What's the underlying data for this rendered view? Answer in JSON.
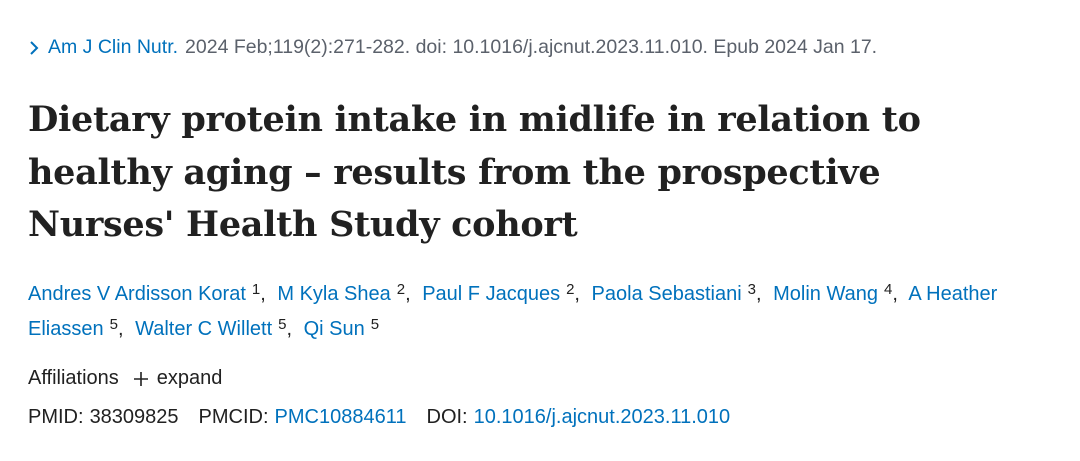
{
  "citation": {
    "journal": "Am J Clin Nutr.",
    "details": "2024 Feb;119(2):271-282. doi: 10.1016/j.ajcnut.2023.11.010. Epub 2024 Jan 17."
  },
  "title": "Dietary protein intake in midlife in relation to healthy aging – results from the prospective Nurses' Health Study cohort",
  "author_separator": ",",
  "authors": [
    {
      "name": "Andres V Ardisson Korat",
      "affiliation": "1"
    },
    {
      "name": "M Kyla Shea",
      "affiliation": "2"
    },
    {
      "name": "Paul F Jacques",
      "affiliation": "2"
    },
    {
      "name": "Paola Sebastiani",
      "affiliation": "3"
    },
    {
      "name": "Molin Wang",
      "affiliation": "4"
    },
    {
      "name": "A Heather Eliassen",
      "affiliation": "5"
    },
    {
      "name": "Walter C Willett",
      "affiliation": "5"
    },
    {
      "name": "Qi Sun",
      "affiliation": "5"
    }
  ],
  "affiliations": {
    "label": "Affiliations",
    "toggle": "expand"
  },
  "identifiers": [
    {
      "label": "PMID:",
      "value": "38309825",
      "link": false
    },
    {
      "label": "PMCID:",
      "value": "PMC10884611",
      "link": true
    },
    {
      "label": "DOI:",
      "value": "10.1016/j.ajcnut.2023.11.010",
      "link": true
    }
  ]
}
